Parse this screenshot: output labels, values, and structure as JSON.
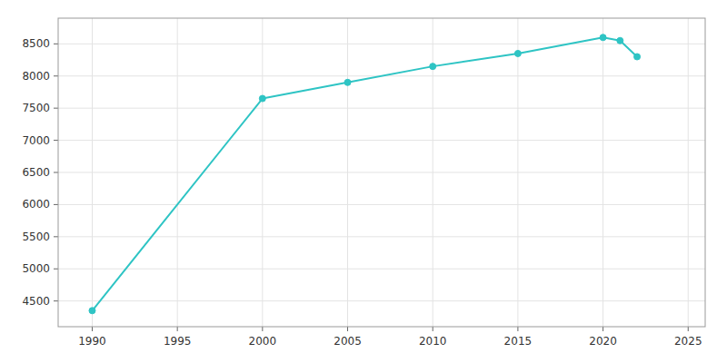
{
  "chart_data": {
    "type": "line",
    "x": [
      1990,
      2000,
      2005,
      2010,
      2015,
      2020,
      2021,
      2022
    ],
    "values": [
      4350,
      7650,
      7900,
      8150,
      8350,
      8600,
      8550,
      8300
    ],
    "color": "#2ec4c4",
    "marker": "o",
    "xlim": [
      1988,
      2026
    ],
    "ylim": [
      4100,
      8900
    ],
    "xticks": [
      1990,
      1995,
      2000,
      2005,
      2010,
      2015,
      2020,
      2025
    ],
    "yticks": [
      4500,
      5000,
      5500,
      6000,
      6500,
      7000,
      7500,
      8000,
      8500
    ],
    "grid": true
  }
}
